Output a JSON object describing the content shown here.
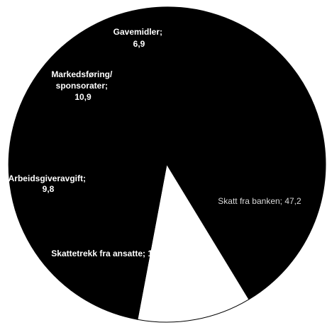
{
  "chart_data": {
    "type": "pie",
    "slices": [
      {
        "label": "Skatt fra banken",
        "value": 47.2,
        "text": "Skatt fra banken; 47,2",
        "color": "#000000"
      },
      {
        "label": "Skattetrekk fra ansatte",
        "value": 19.2,
        "text": "Skattetrekk fra ansatte; 19,2",
        "color": "#000000"
      },
      {
        "label": "Arbeidsgiveravgift",
        "value": 9.8,
        "text": [
          "Arbeidsgiveravgift;",
          "9,8"
        ],
        "color": "#000000"
      },
      {
        "label": "Markedsføring/sponsorater",
        "value": 10.9,
        "text": [
          "Markedsføring/",
          "sponsorater;",
          "10,9"
        ],
        "color": "#ffffff"
      },
      {
        "label": "Gavemidler",
        "value": 6.9,
        "text": [
          "Gavemidler;",
          "6,9"
        ],
        "color": "#000000"
      }
    ],
    "start_angle_deg": 217,
    "direction": "clockwise",
    "legend": "none",
    "grid": false,
    "background": "#ffffff"
  }
}
